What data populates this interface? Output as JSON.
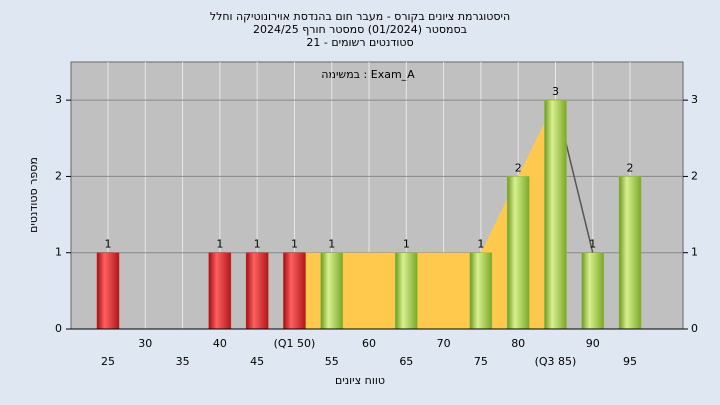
{
  "chart_data": {
    "type": "bar",
    "title": "היסטוגרמת ציונים בקורס - מעבר חום בהנדסת אוירונוטיקה וחלל",
    "subtitle": "בסמסטר  (01/2024)  סמסטר חורף 2024/25",
    "subtitle2": "סטודנטים רשומים - 21",
    "annotation": "במשימה : Exam_A",
    "y_label": "מספר סטודנטים",
    "x_label": "טווח ציונים",
    "categories": [
      "25",
      "30",
      "35",
      "40",
      "45",
      "(Q1 50)",
      "55",
      "60",
      "65",
      "70",
      "75",
      "80",
      "(Q3 85)",
      "90",
      "95"
    ],
    "values": [
      1,
      0,
      0,
      1,
      1,
      1,
      1,
      0,
      1,
      0,
      1,
      2,
      3,
      1,
      2
    ],
    "colors": [
      "#d42020",
      "#d42020",
      "#d42020",
      "#d42020",
      "#d42020",
      "#d42020",
      "#8dbb3a",
      "#8dbb3a",
      "#8dbb3a",
      "#8dbb3a",
      "#8dbb3a",
      "#8dbb3a",
      "#8dbb3a",
      "#8dbb3a",
      "#8dbb3a"
    ],
    "series": [
      {
        "color": "#ffc94d",
        "values": [
          null,
          null,
          null,
          null,
          null,
          1,
          1,
          1,
          1,
          1,
          1,
          2,
          3,
          null,
          null
        ]
      },
      {
        "color": "#555555",
        "values": [
          null,
          null,
          null,
          null,
          null,
          null,
          null,
          null,
          null,
          null,
          null,
          null,
          3,
          1,
          null
        ]
      }
    ],
    "ylim": [
      0,
      3.5
    ],
    "yticks": [
      0,
      1,
      2,
      3
    ],
    "y2lim": [
      0,
      3.5
    ],
    "y2ticks": [
      0,
      1,
      2,
      3
    ],
    "grid": true
  }
}
